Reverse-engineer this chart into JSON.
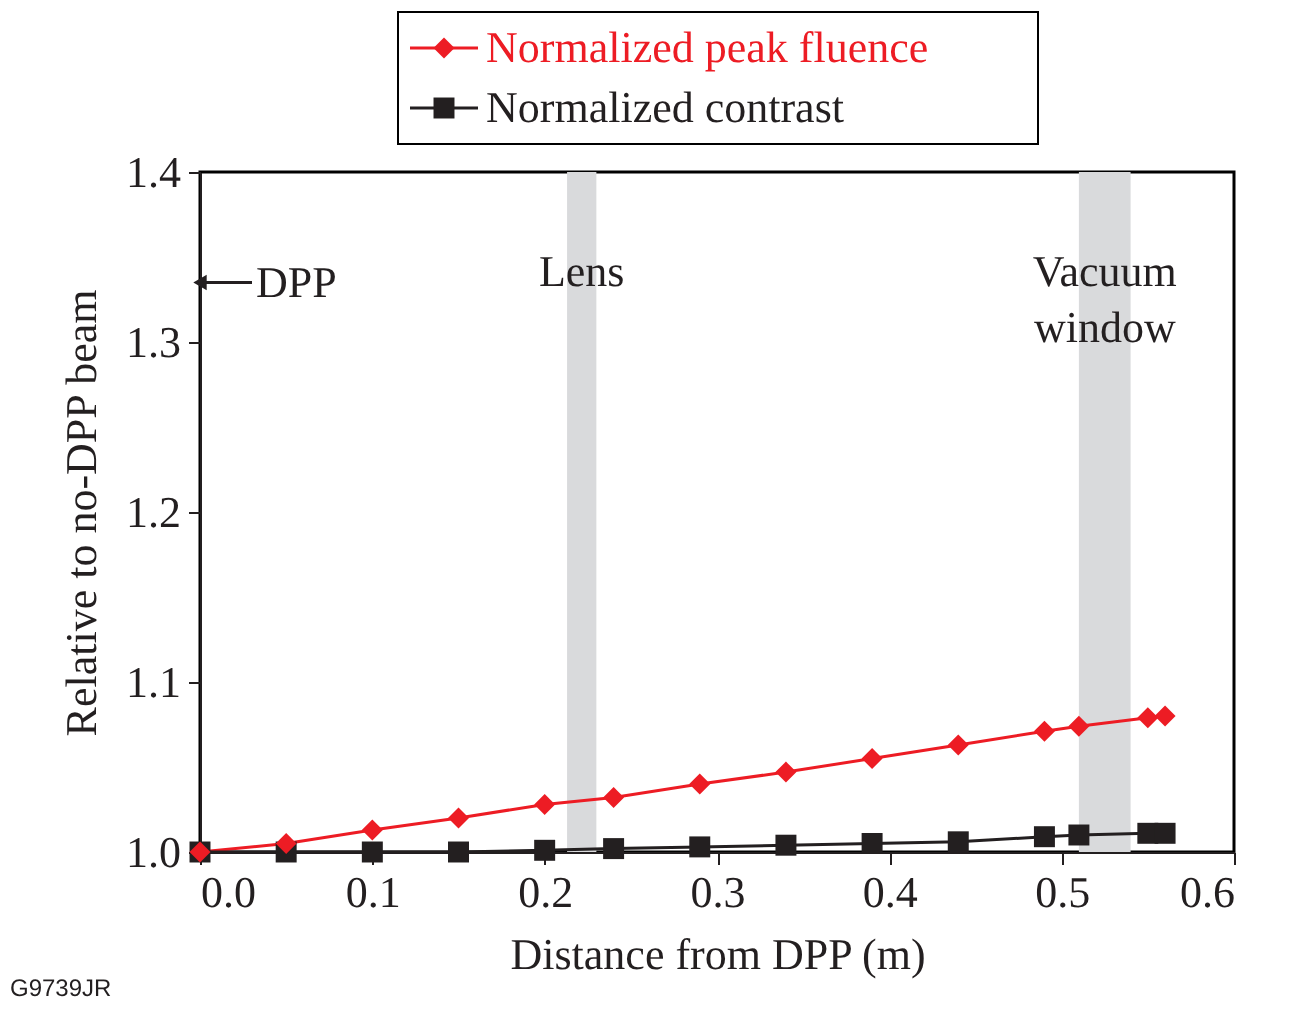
{
  "chart_data": {
    "type": "line",
    "xlabel": "Distance from DPP (m)",
    "ylabel": "Relative to no-DPP beam",
    "x": [
      0,
      0.05,
      0.1,
      0.15,
      0.2,
      0.24,
      0.29,
      0.34,
      0.39,
      0.44,
      0.49,
      0.51,
      0.55,
      0.56
    ],
    "series": [
      {
        "name": "Normalized peak fluence",
        "color": "#ed1c24",
        "marker": "diamond",
        "values": [
          1.0,
          1.005,
          1.013,
          1.02,
          1.028,
          1.032,
          1.04,
          1.047,
          1.055,
          1.063,
          1.071,
          1.074,
          1.079,
          1.08
        ]
      },
      {
        "name": "Normalized contrast",
        "color": "#231f20",
        "marker": "square",
        "values": [
          1.0,
          1.0,
          1.0,
          1.0,
          1.001,
          1.002,
          1.003,
          1.004,
          1.005,
          1.006,
          1.009,
          1.01,
          1.011,
          1.011
        ]
      }
    ],
    "xlim": [
      0,
      0.6
    ],
    "xticks": [
      {
        "value": 0,
        "label": "0.0"
      },
      0.1,
      0.2,
      0.3,
      0.4,
      0.5,
      0.6
    ],
    "ylim": [
      1.0,
      1.4
    ],
    "yticks": [
      {
        "value": 1,
        "label": "1.0"
      },
      1.1,
      1.2,
      1.3,
      1.4
    ],
    "bands": [
      {
        "axis": "x",
        "from": 0.213,
        "to": 0.23,
        "label": "Lens",
        "color": "#d9dadc"
      },
      {
        "axis": "x",
        "from": 0.51,
        "to": 0.54,
        "label": "Vacuum window",
        "color": "#d9dadc"
      }
    ],
    "annotations": [
      {
        "text": "DPP",
        "x": 0,
        "y": 1.335
      },
      "G9739JR"
    ],
    "grid": false,
    "legend": "top",
    "line_style": "solid"
  }
}
